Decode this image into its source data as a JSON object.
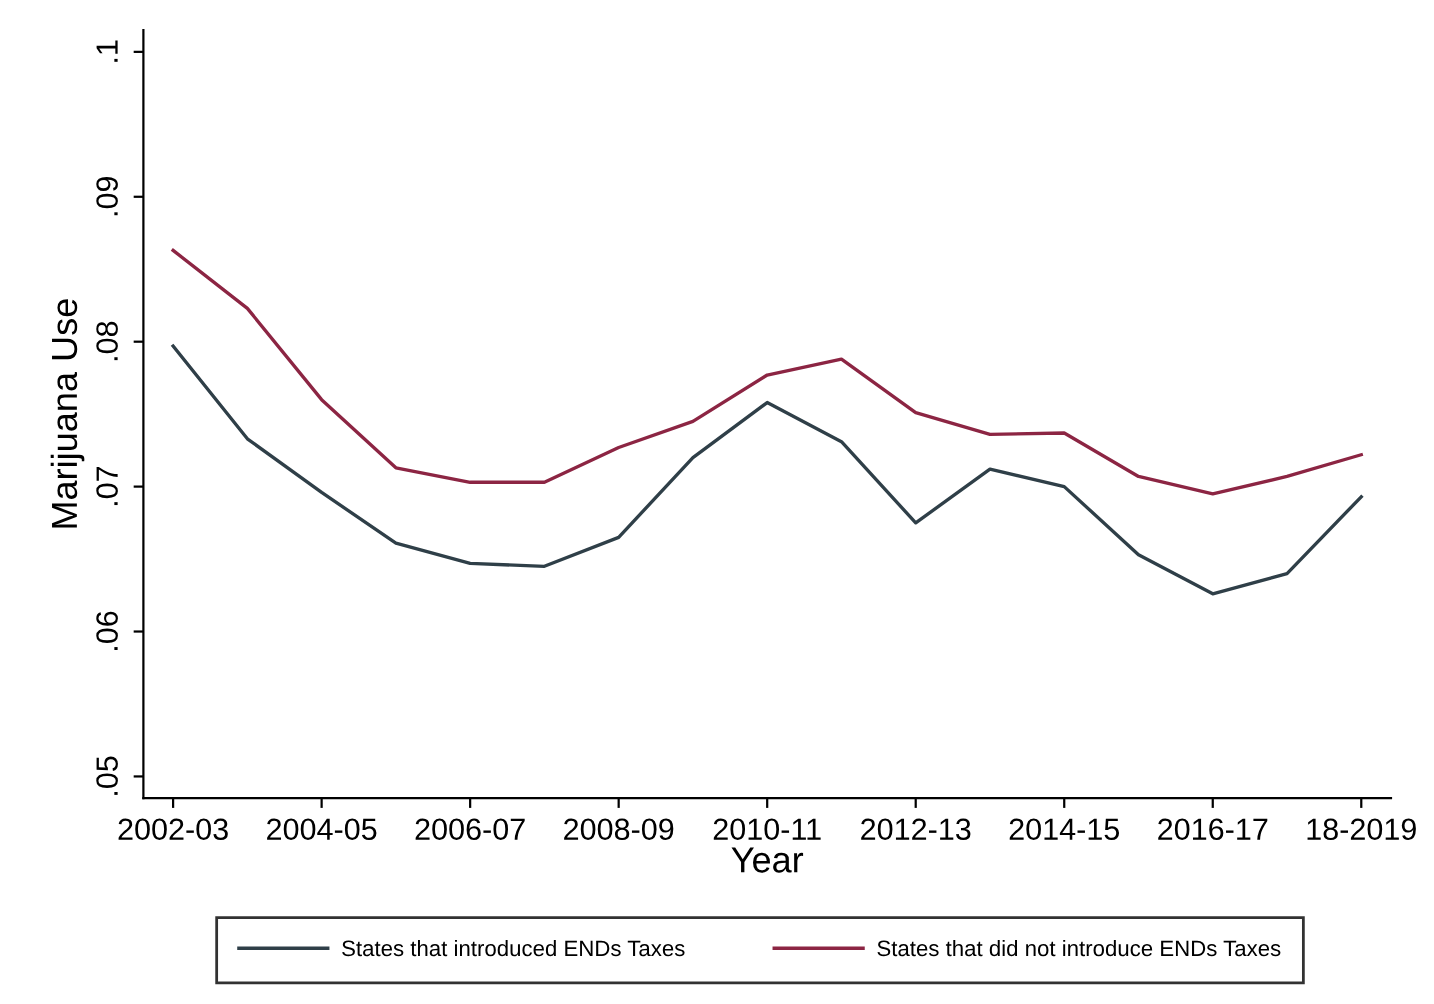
{
  "chart_data": {
    "type": "line",
    "xlabel": "Year",
    "ylabel": "Marijuana Use",
    "categories": [
      "2002-03",
      null,
      "2004-05",
      null,
      "2006-07",
      null,
      "2008-09",
      null,
      "2010-11",
      null,
      "2012-13",
      null,
      "2014-15",
      null,
      "2016-17",
      null,
      "18-2019"
    ],
    "series": [
      {
        "name": "States that introduced ENDs Taxes",
        "color": "#2f3f48",
        "values": [
          0.0797,
          0.0733,
          0.0696,
          0.0661,
          0.0647,
          0.0645,
          0.0665,
          0.072,
          0.0758,
          0.0731,
          0.0675,
          0.0712,
          0.07,
          0.0653,
          0.0626,
          0.064,
          0.0693
        ]
      },
      {
        "name": "States that did not introduce ENDs Taxes",
        "color": "#8c2543",
        "values": [
          0.0863,
          0.0823,
          0.076,
          0.0713,
          0.0703,
          0.0703,
          0.0727,
          0.0745,
          0.0777,
          0.0788,
          0.0751,
          0.0736,
          0.0737,
          0.0707,
          0.0695,
          0.0707,
          0.0722
        ]
      }
    ],
    "ylim": [
      0.0485,
      0.1015
    ],
    "yticks": [
      {
        "value": 0.05,
        "label": ".05"
      },
      {
        "value": 0.06,
        "label": ".06"
      },
      {
        "value": 0.07,
        "label": ".07"
      },
      {
        "value": 0.08,
        "label": ".08"
      },
      {
        "value": 0.09,
        "label": ".09"
      },
      {
        "value": 0.1,
        "label": ".1"
      }
    ],
    "legend": "bottom",
    "grid": false,
    "line_style": "solid",
    "marker": "none"
  }
}
